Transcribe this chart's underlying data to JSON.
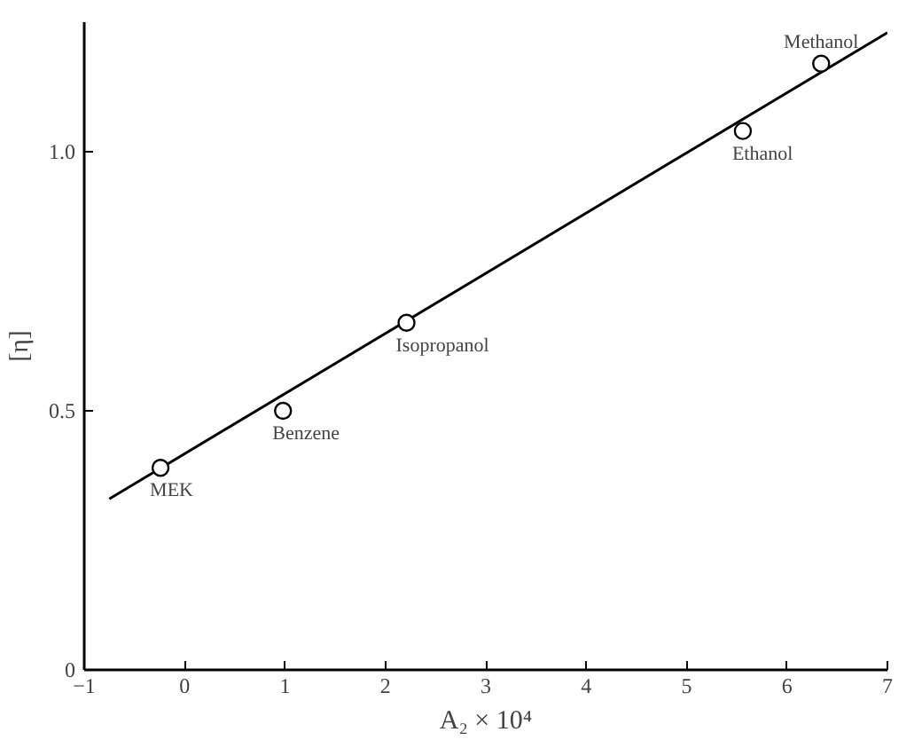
{
  "chart_data": {
    "type": "scatter",
    "xlabel": "A₂ × 10⁴",
    "ylabel": "[η]",
    "xlim": [
      -1,
      7
    ],
    "ylim": [
      0,
      1.25
    ],
    "xticks": [
      -1,
      0,
      1,
      2,
      3,
      4,
      5,
      6,
      7
    ],
    "yticks": [
      0,
      0.5,
      {
        "value": 1,
        "label": "1.0"
      }
    ],
    "grid": false,
    "marker": "circle",
    "series": [
      {
        "color": "#000000",
        "x": [
          -0.24,
          0.98,
          2.21,
          5.56,
          6.34
        ],
        "values": [
          0.39,
          0.5,
          0.67,
          1.04,
          1.17
        ]
      },
      {
        "type": "line",
        "color": "#000000",
        "line_style": "solid",
        "marker": "none",
        "x": [
          -0.75,
          7
        ],
        "values": [
          0.33,
          1.23
        ]
      }
    ],
    "annotations": [
      {
        "text": "MEK",
        "x": -0.24,
        "y": 0.39
      },
      {
        "text": "Benzene",
        "x": 0.98,
        "y": 0.5
      },
      {
        "text": "Isopropanol",
        "x": 2.21,
        "y": 0.67
      },
      {
        "text": "Ethanol",
        "x": 5.56,
        "y": 1.04
      },
      {
        "text": "Methanol",
        "x": 6.34,
        "y": 1.17
      }
    ]
  }
}
